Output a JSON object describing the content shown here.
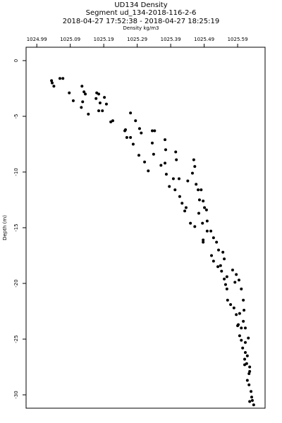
{
  "chart_data": {
    "type": "scatter",
    "title": "UD134 Density",
    "subtitle": [
      "Segment ud_134-2018-116-2-6",
      "2018-04-27 17:52:38 - 2018-04-27 18:25:19"
    ],
    "xlabel": "Density kg/m3",
    "ylabel": "Depth (m)",
    "xaxis_position": "top",
    "grid": false,
    "color": "#000000",
    "xlim": [
      1024.958,
      1025.672
    ],
    "xticks": [
      1024.99,
      1025.09,
      1025.19,
      1025.29,
      1025.39,
      1025.49,
      1025.59
    ],
    "ylim": [
      -31.2,
      1.2
    ],
    "yticks": [
      0,
      -5,
      -10,
      -15,
      -20,
      -25,
      -30
    ],
    "x": [
      1025.034,
      1025.036,
      1025.041,
      1025.059,
      1025.068,
      1025.125,
      1025.087,
      1025.131,
      1025.135,
      1025.099,
      1025.127,
      1025.123,
      1025.144,
      1025.169,
      1025.175,
      1025.167,
      1025.192,
      1025.179,
      1025.198,
      1025.175,
      1025.186,
      1025.211,
      1025.217,
      1025.27,
      1025.253,
      1025.255,
      1025.259,
      1025.27,
      1025.285,
      1025.297,
      1025.302,
      1025.278,
      1025.295,
      1025.312,
      1025.323,
      1025.335,
      1025.342,
      1025.335,
      1025.373,
      1025.339,
      1025.375,
      1025.361,
      1025.373,
      1025.377,
      1025.386,
      1025.398,
      1025.405,
      1025.407,
      1025.415,
      1025.403,
      1025.417,
      1025.424,
      1025.432,
      1025.436,
      1025.449,
      1025.462,
      1025.441,
      1025.455,
      1025.459,
      1025.462,
      1025.466,
      1025.472,
      1025.481,
      1025.476,
      1025.487,
      1025.491,
      1025.497,
      1025.474,
      1025.485,
      1025.499,
      1025.499,
      1025.487,
      1025.487,
      1025.51,
      1025.518,
      1025.527,
      1025.512,
      1025.533,
      1025.546,
      1025.518,
      1025.531,
      1025.539,
      1025.55,
      1025.542,
      1025.55,
      1025.558,
      1025.554,
      1025.558,
      1025.575,
      1025.586,
      1025.582,
      1025.594,
      1025.56,
      1025.569,
      1025.579,
      1025.601,
      1025.607,
      1025.586,
      1025.596,
      1025.592,
      1025.601,
      1025.59,
      1025.609,
      1025.607,
      1025.613,
      1025.596,
      1025.601,
      1025.613,
      1025.622,
      1025.613,
      1025.605,
      1025.611,
      1025.619,
      1025.611,
      1025.617,
      1025.626,
      1025.619,
      1025.624,
      1025.63,
      1025.626,
      1025.634,
      1025.638,
      1025.632,
      1025.626,
      1025.624
    ],
    "values": [
      -1.8,
      -2.0,
      -2.3,
      -1.6,
      -1.6,
      -2.3,
      -2.9,
      -2.8,
      -3.0,
      -3.6,
      -3.7,
      -4.2,
      -4.8,
      -2.9,
      -3.0,
      -3.4,
      -3.3,
      -3.8,
      -3.9,
      -4.5,
      -4.5,
      -5.5,
      -5.4,
      -4.7,
      -6.3,
      -6.2,
      -6.9,
      -6.9,
      -5.4,
      -6.1,
      -6.5,
      -7.5,
      -8.5,
      -9.1,
      -9.9,
      -6.3,
      -6.3,
      -7.4,
      -7.1,
      -8.4,
      -8.0,
      -9.4,
      -9.2,
      -10.2,
      -11.3,
      -10.6,
      -8.2,
      -8.9,
      -10.6,
      -11.6,
      -12.2,
      -12.8,
      -13.5,
      -13.2,
      -14.6,
      -14.9,
      -10.8,
      -10.1,
      -8.9,
      -9.5,
      -11.1,
      -11.6,
      -11.6,
      -12.5,
      -12.6,
      -13.2,
      -13.4,
      -13.7,
      -14.6,
      -14.4,
      -15.3,
      -16.1,
      -16.3,
      -15.3,
      -15.9,
      -16.3,
      -17.5,
      -17.0,
      -17.2,
      -18.0,
      -18.5,
      -18.4,
      -17.8,
      -18.9,
      -19.6,
      -19.4,
      -20.1,
      -20.5,
      -18.8,
      -19.2,
      -19.9,
      -19.7,
      -21.5,
      -21.9,
      -22.2,
      -20.5,
      -21.5,
      -22.8,
      -22.7,
      -23.7,
      -24.0,
      -23.8,
      -22.4,
      -23.4,
      -24.0,
      -24.7,
      -25.1,
      -25.3,
      -24.9,
      -26.2,
      -25.8,
      -26.8,
      -26.5,
      -27.3,
      -27.2,
      -27.9,
      -28.7,
      -29.1,
      -29.7,
      -30.6,
      -30.5,
      -30.9,
      -30.2,
      -27.5,
      -28.1
    ]
  }
}
